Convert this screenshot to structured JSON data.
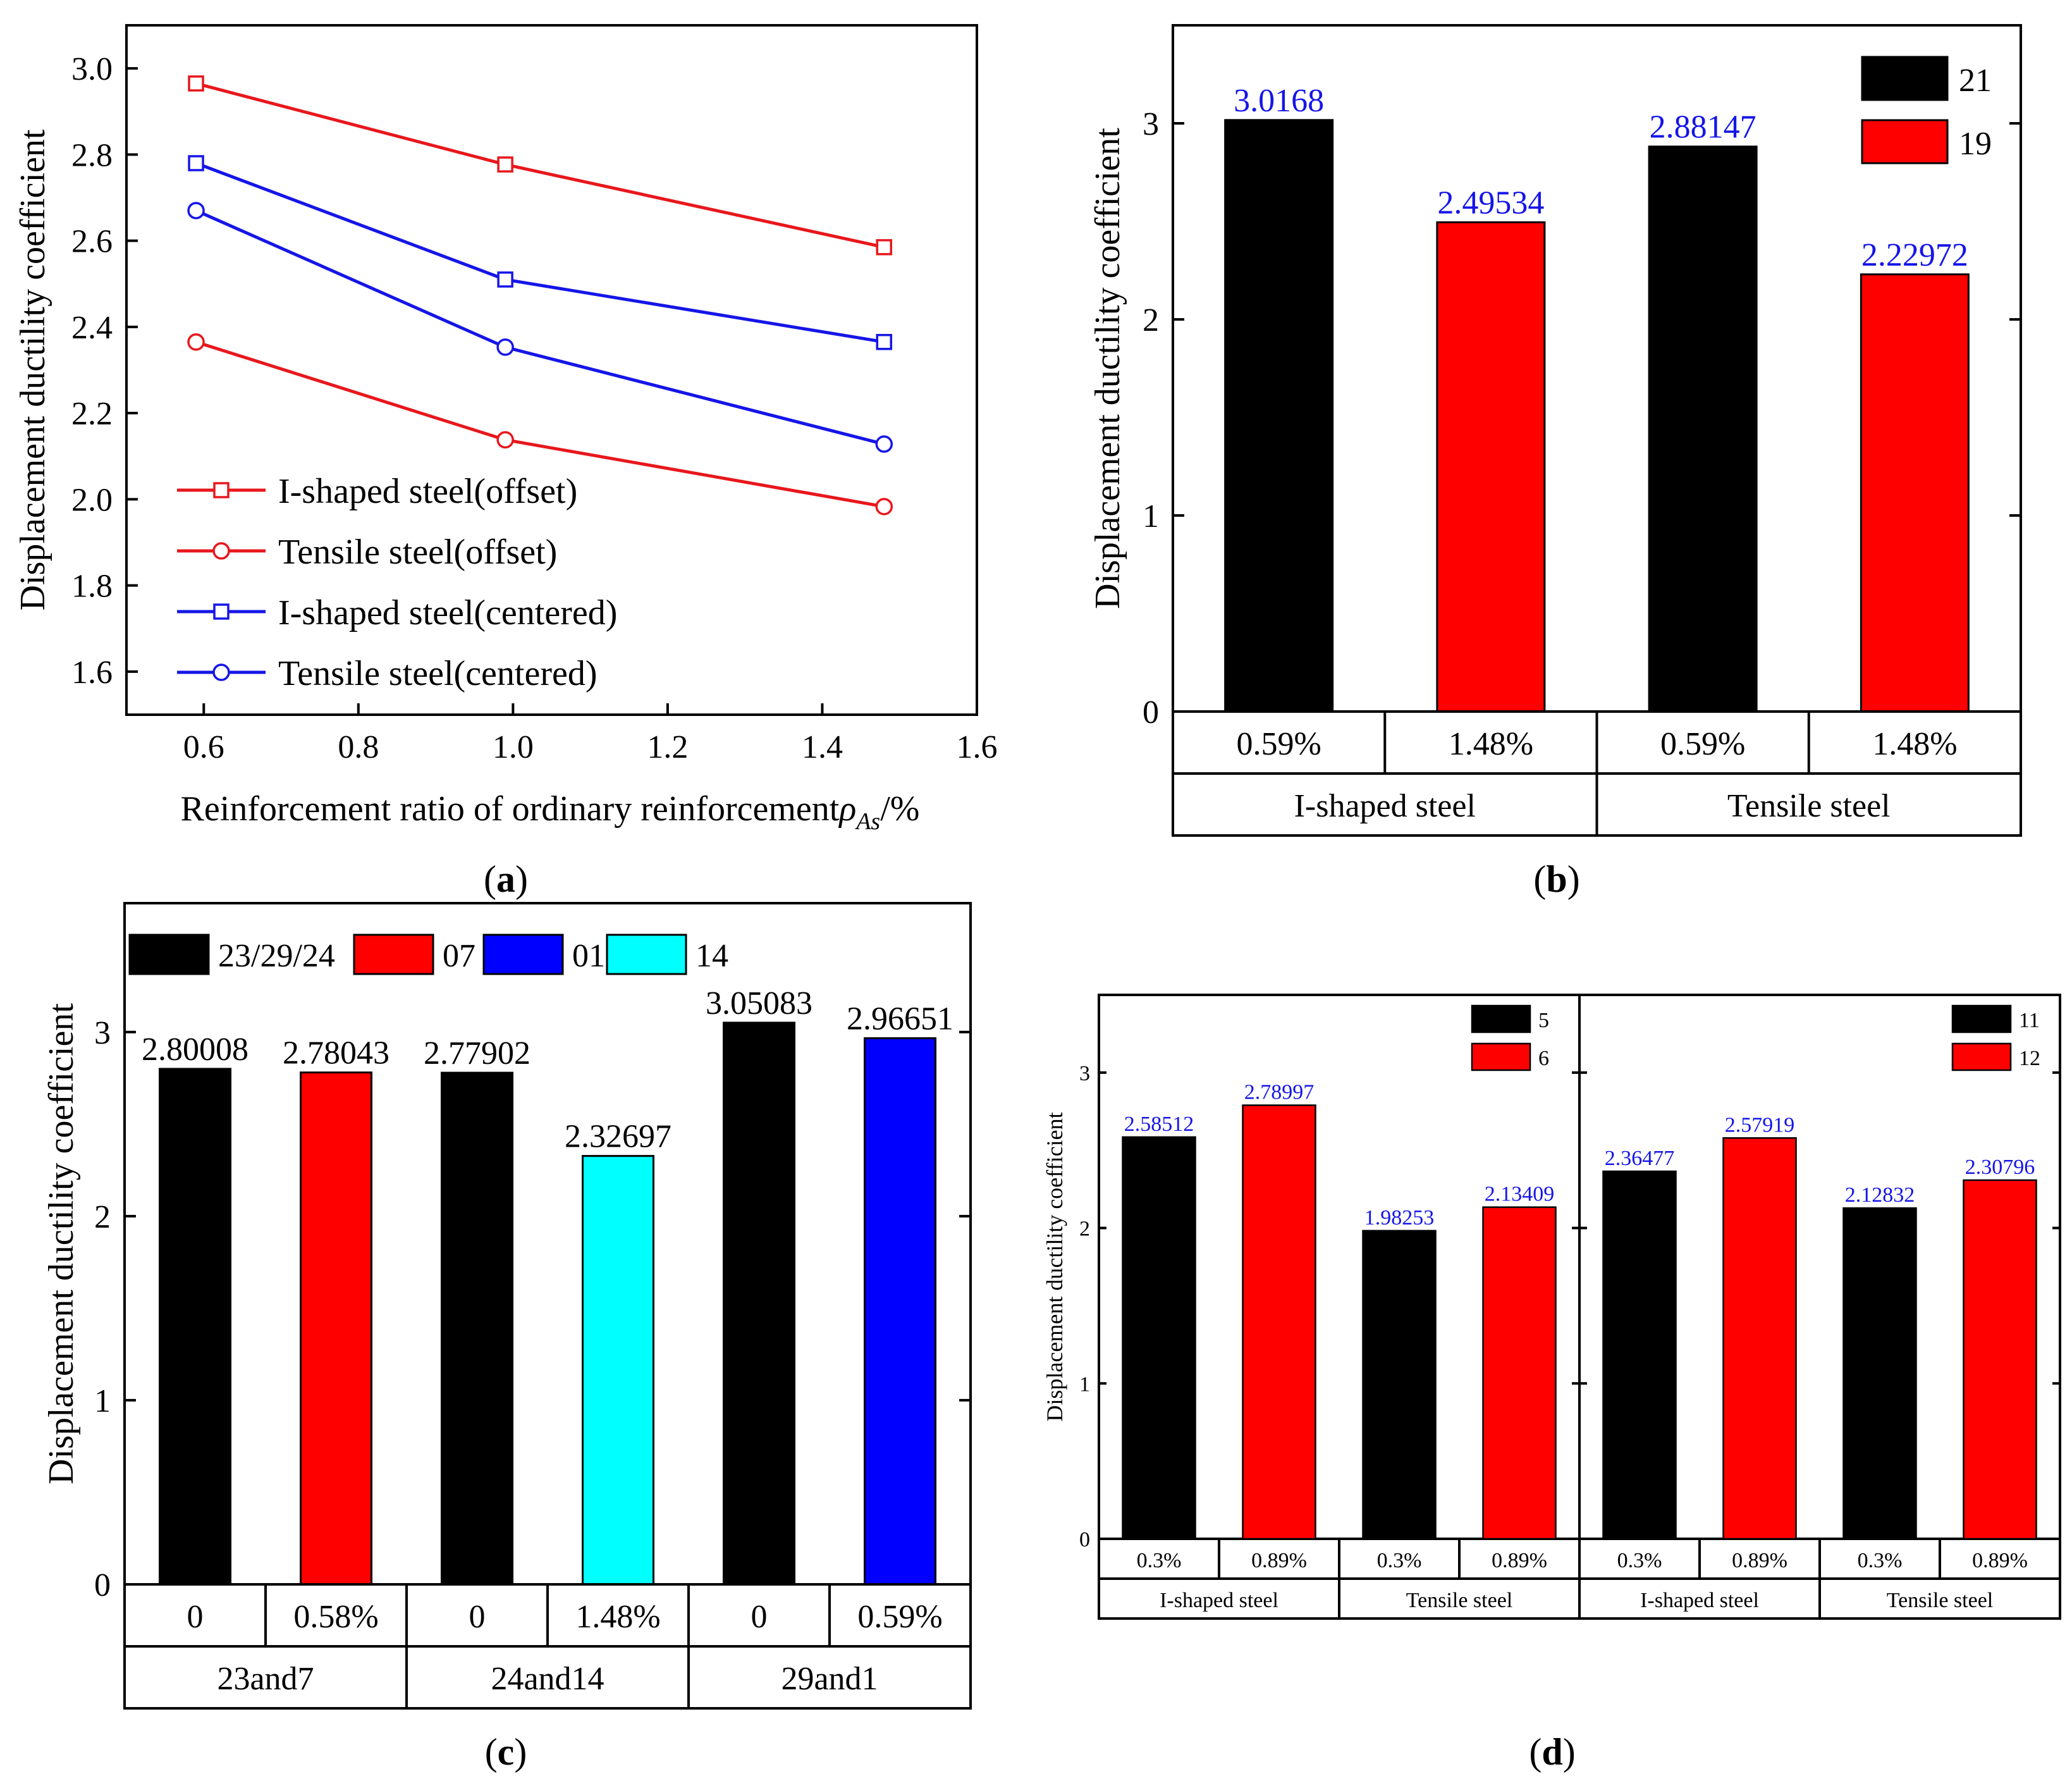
{
  "chart_data": [
    {
      "panel": "a",
      "type": "line",
      "xlabel": "Reinforcement ratio of ordinary reinforcement",
      "xlabel_rho": "ρ",
      "xlabel_sub": "As",
      "xlabel_unit": "/%",
      "ylabel": "Displacement ductility coefficient",
      "xlim": [
        0.5,
        1.6
      ],
      "ylim": [
        1.5,
        3.1
      ],
      "xticks": [
        "0.6",
        "0.8",
        "1.0",
        "1.2",
        "1.4",
        "1.6"
      ],
      "xtick_values": [
        0.6,
        0.8,
        1.0,
        1.2,
        1.4,
        1.6
      ],
      "yticks": [
        "1.6",
        "1.8",
        "2.0",
        "2.2",
        "2.4",
        "2.6",
        "2.8",
        "3.0"
      ],
      "ytick_values": [
        1.6,
        1.8,
        2.0,
        2.2,
        2.4,
        2.6,
        2.8,
        3.0
      ],
      "x": [
        0.59,
        0.99,
        1.48
      ],
      "series": [
        {
          "name": "I-shaped steel(offset)",
          "values": [
            2.965,
            2.777,
            2.585
          ],
          "color": "#e8171c",
          "marker": "square"
        },
        {
          "name": "Tensile steel(offset)",
          "values": [
            2.365,
            2.138,
            1.983
          ],
          "color": "#e8171c",
          "marker": "circle"
        },
        {
          "name": "I-shaped steel(centered)",
          "values": [
            2.78,
            2.51,
            2.365
          ],
          "color": "#1515e8",
          "marker": "square"
        },
        {
          "name": "Tensile steel(centered)",
          "values": [
            2.67,
            2.353,
            2.128
          ],
          "color": "#1515e8",
          "marker": "circle"
        }
      ],
      "legend_position": "bottom-left",
      "panel_label": "a"
    },
    {
      "panel": "b",
      "type": "bar",
      "ylabel": "Displacement ductility coefficient",
      "ylim": [
        0,
        3.5
      ],
      "yticks": [
        "0",
        "1",
        "2",
        "3"
      ],
      "ytick_values": [
        0,
        1,
        2,
        3
      ],
      "bars": [
        {
          "value": 3.0168,
          "label": "3.0168",
          "series": "21"
        },
        {
          "value": 2.49534,
          "label": "2.49534",
          "series": "19"
        },
        {
          "value": 2.88147,
          "label": "2.88147",
          "series": "21"
        },
        {
          "value": 2.22972,
          "label": "2.22972",
          "series": "19"
        }
      ],
      "categories": [
        "0.59%",
        "1.48%",
        "0.59%",
        "1.48%"
      ],
      "groups": [
        "I-shaped steel",
        "Tensile steel"
      ],
      "legend": [
        {
          "name": "21",
          "color": "#000000"
        },
        {
          "name": "19",
          "color": "#ff0000"
        }
      ],
      "legend_position": "top-right",
      "panel_label": "b"
    },
    {
      "panel": "c",
      "type": "bar",
      "ylabel": "Displacement ductility coefficient",
      "ylim": [
        0,
        3.7
      ],
      "yticks": [
        "0",
        "1",
        "2",
        "3"
      ],
      "ytick_values": [
        0,
        1,
        2,
        3
      ],
      "bars": [
        {
          "value": 2.80008,
          "label": "2.80008",
          "series": "23/29/24"
        },
        {
          "value": 2.78043,
          "label": "2.78043",
          "series": "07"
        },
        {
          "value": 2.77902,
          "label": "2.77902",
          "series": "23/29/24"
        },
        {
          "value": 2.32697,
          "label": "2.32697",
          "series": "14"
        },
        {
          "value": 3.05083,
          "label": "3.05083",
          "series": "23/29/24"
        },
        {
          "value": 2.96651,
          "label": "2.96651",
          "series": "01"
        }
      ],
      "categories": [
        "0",
        "0.58%",
        "0",
        "1.48%",
        "0",
        "0.59%"
      ],
      "groups": [
        "23and7",
        "24and14",
        "29and1"
      ],
      "legend": [
        {
          "name": "23/29/24",
          "color": "#000000"
        },
        {
          "name": "07",
          "color": "#ff0000"
        },
        {
          "name": "01",
          "color": "#0000ff"
        },
        {
          "name": "14",
          "color": "#00ffff"
        }
      ],
      "legend_position": "top",
      "panel_label": "c"
    },
    {
      "panel": "d",
      "type": "bar",
      "ylabel": "Displacement ductility coefficient",
      "ylim": [
        0,
        3.5
      ],
      "yticks": [
        "0",
        "1",
        "2",
        "3"
      ],
      "ytick_values": [
        0,
        1,
        2,
        3
      ],
      "subplots": [
        {
          "bars": [
            {
              "value": 2.58512,
              "label": "2.58512",
              "series": "5"
            },
            {
              "value": 2.78997,
              "label": "2.78997",
              "series": "6"
            },
            {
              "value": 1.98253,
              "label": "1.98253",
              "series": "5"
            },
            {
              "value": 2.13409,
              "label": "2.13409",
              "series": "6"
            }
          ],
          "categories": [
            "0.3%",
            "0.89%",
            "0.3%",
            "0.89%"
          ],
          "groups": [
            "I-shaped steel",
            "Tensile steel"
          ],
          "legend": [
            {
              "name": "5",
              "color": "#000000"
            },
            {
              "name": "6",
              "color": "#ff0000"
            }
          ]
        },
        {
          "bars": [
            {
              "value": 2.36477,
              "label": "2.36477",
              "series": "11"
            },
            {
              "value": 2.57919,
              "label": "2.57919",
              "series": "12"
            },
            {
              "value": 2.12832,
              "label": "2.12832",
              "series": "11"
            },
            {
              "value": 2.30796,
              "label": "2.30796",
              "series": "12"
            }
          ],
          "categories": [
            "0.3%",
            "0.89%",
            "0.3%",
            "0.89%"
          ],
          "groups": [
            "I-shaped steel",
            "Tensile steel"
          ],
          "legend": [
            {
              "name": "11",
              "color": "#000000"
            },
            {
              "name": "12",
              "color": "#ff0000"
            }
          ]
        }
      ],
      "legend_position": "top-right",
      "panel_label": "d"
    }
  ]
}
